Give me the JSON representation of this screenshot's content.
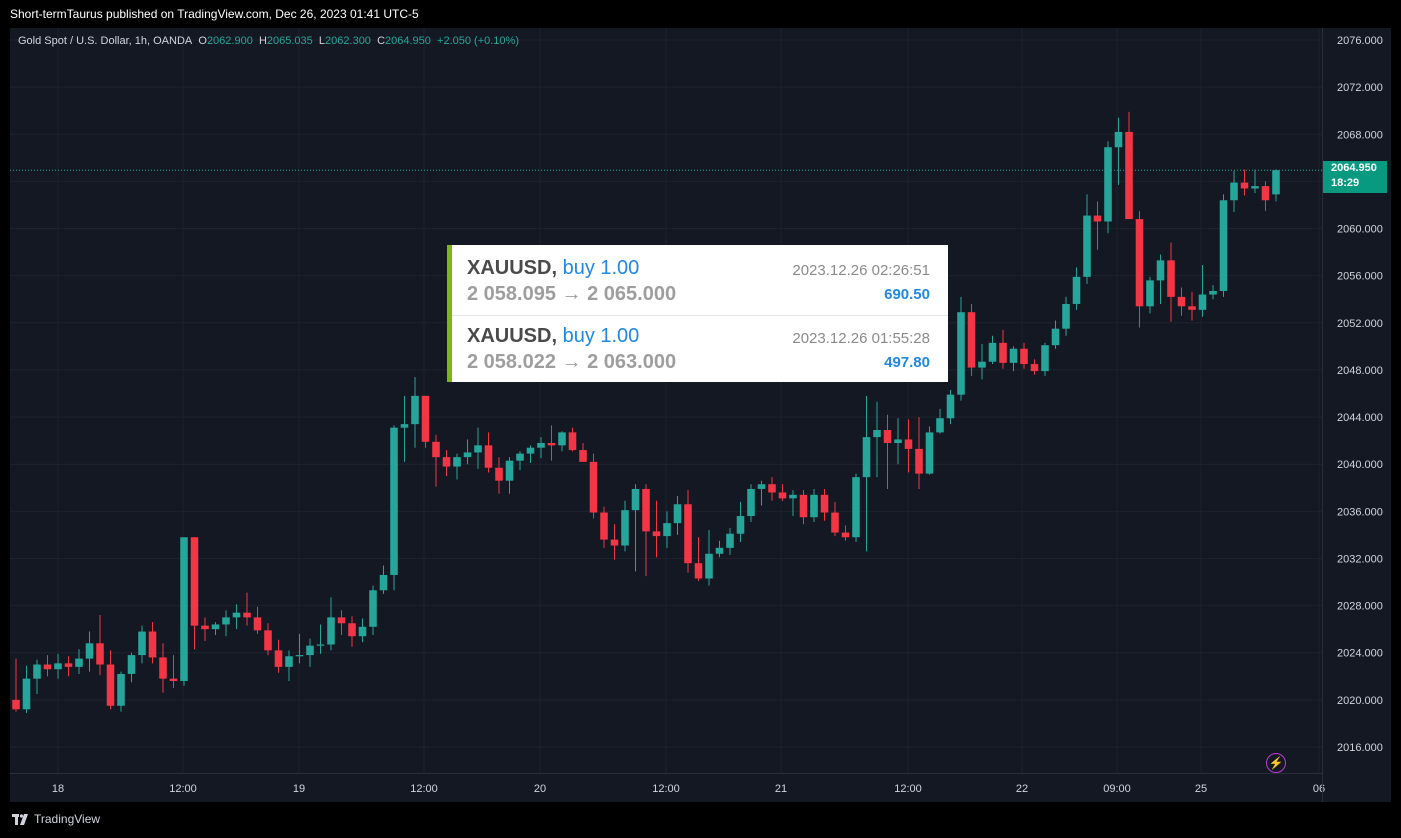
{
  "header": {
    "publisher_line": "Short-termTaurus published on TradingView.com, Dec 26, 2023 01:41 UTC-5"
  },
  "footer": {
    "brand": "TradingView"
  },
  "legend": {
    "symbol": "Gold Spot / U.S. Dollar, 1h, OANDA",
    "o_label": "O",
    "o_value": "2062.900",
    "h_label": "H",
    "h_value": "2065.035",
    "l_label": "L",
    "l_value": "2062.300",
    "c_label": "C",
    "c_value": "2064.950",
    "change": "+2.050 (+0.10%)"
  },
  "price_tag": {
    "price": "2064.950",
    "countdown": "18:29"
  },
  "trades": [
    {
      "symbol": "XAUUSD,",
      "side": "buy 1.00",
      "prices": "2 058.095 → 2 065.000",
      "time": "2023.12.26 02:26:51",
      "profit": "690.50"
    },
    {
      "symbol": "XAUUSD,",
      "side": "buy 1.00",
      "prices": "2 058.022 → 2 063.000",
      "time": "2023.12.26 01:55:28",
      "profit": "497.80"
    }
  ],
  "colors": {
    "up": "#26a69a",
    "down": "#f23645",
    "background": "#141823",
    "grid": "#1e222d",
    "accent_bar": "#7cb518",
    "profit": "#1e88e5"
  },
  "chart_data": {
    "type": "candlestick",
    "ylim": [
      2013.0,
      2078.0
    ],
    "y_ticks": [
      "2076.000",
      "2072.000",
      "2068.000",
      "2064.000",
      "2060.000",
      "2056.000",
      "2052.000",
      "2048.000",
      "2044.000",
      "2040.000",
      "2036.000",
      "2032.000",
      "2028.000",
      "2024.000",
      "2020.000",
      "2016.000"
    ],
    "x_ticks": [
      "18",
      "12:00",
      "19",
      "12:00",
      "20",
      "12:00",
      "21",
      "12:00",
      "22",
      "09:00",
      "25",
      "06"
    ],
    "current_price": 2064.95,
    "candles": [
      [
        2020.0,
        2023.5,
        2019.0,
        2019.2
      ],
      [
        2019.2,
        2022.9,
        2018.9,
        2021.8
      ],
      [
        2021.8,
        2023.4,
        2020.5,
        2023.0
      ],
      [
        2023.0,
        2023.8,
        2022.0,
        2022.6
      ],
      [
        2022.6,
        2023.9,
        2021.8,
        2023.1
      ],
      [
        2023.1,
        2023.7,
        2022.0,
        2022.8
      ],
      [
        2022.8,
        2024.3,
        2022.2,
        2023.5
      ],
      [
        2023.5,
        2025.8,
        2022.4,
        2024.8
      ],
      [
        2024.8,
        2027.2,
        2022.1,
        2023.0
      ],
      [
        2023.0,
        2024.2,
        2019.2,
        2019.5
      ],
      [
        2019.5,
        2022.4,
        2019.0,
        2022.2
      ],
      [
        2022.2,
        2024.0,
        2021.5,
        2023.8
      ],
      [
        2023.8,
        2026.3,
        2023.1,
        2025.8
      ],
      [
        2025.8,
        2026.6,
        2023.1,
        2023.6
      ],
      [
        2023.6,
        2024.8,
        2020.6,
        2021.8
      ],
      [
        2021.8,
        2023.8,
        2021.0,
        2021.6
      ],
      [
        2021.6,
        2033.8,
        2021.2,
        2033.8
      ],
      [
        2033.8,
        2033.8,
        2024.3,
        2026.3
      ],
      [
        2026.3,
        2027.0,
        2025.0,
        2026.0
      ],
      [
        2026.0,
        2026.6,
        2025.5,
        2026.4
      ],
      [
        2026.4,
        2027.6,
        2025.4,
        2027.0
      ],
      [
        2027.0,
        2028.1,
        2026.0,
        2027.4
      ],
      [
        2027.4,
        2029.1,
        2026.3,
        2027.0
      ],
      [
        2027.0,
        2027.9,
        2025.6,
        2025.9
      ],
      [
        2025.9,
        2026.5,
        2023.8,
        2024.2
      ],
      [
        2024.2,
        2025.1,
        2022.3,
        2022.8
      ],
      [
        2022.8,
        2024.2,
        2021.6,
        2023.7
      ],
      [
        2023.7,
        2025.6,
        2023.1,
        2023.8
      ],
      [
        2023.8,
        2025.2,
        2022.8,
        2024.6
      ],
      [
        2024.6,
        2026.4,
        2023.9,
        2024.7
      ],
      [
        2024.7,
        2028.7,
        2024.2,
        2027.0
      ],
      [
        2027.0,
        2027.6,
        2025.5,
        2026.5
      ],
      [
        2026.5,
        2027.1,
        2024.5,
        2025.4
      ],
      [
        2025.4,
        2026.9,
        2024.9,
        2026.2
      ],
      [
        2026.2,
        2029.7,
        2025.5,
        2029.3
      ],
      [
        2029.3,
        2031.4,
        2029.0,
        2030.6
      ],
      [
        2030.6,
        2043.3,
        2029.3,
        2043.1
      ],
      [
        2043.1,
        2045.8,
        2040.2,
        2043.4
      ],
      [
        2043.4,
        2047.4,
        2041.4,
        2045.8
      ],
      [
        2045.8,
        2045.8,
        2041.4,
        2041.9
      ],
      [
        2041.9,
        2042.5,
        2038.1,
        2040.6
      ],
      [
        2040.6,
        2041.2,
        2039.0,
        2039.8
      ],
      [
        2039.8,
        2040.9,
        2038.7,
        2040.6
      ],
      [
        2040.6,
        2042.1,
        2040.0,
        2041.0
      ],
      [
        2041.0,
        2043.1,
        2039.6,
        2041.6
      ],
      [
        2041.6,
        2042.7,
        2039.3,
        2039.7
      ],
      [
        2039.7,
        2040.6,
        2037.5,
        2038.6
      ],
      [
        2038.6,
        2040.6,
        2037.5,
        2040.3
      ],
      [
        2040.3,
        2041.1,
        2039.5,
        2040.9
      ],
      [
        2040.9,
        2041.6,
        2040.1,
        2041.4
      ],
      [
        2041.4,
        2042.3,
        2040.5,
        2041.8
      ],
      [
        2041.8,
        2043.3,
        2040.3,
        2041.6
      ],
      [
        2041.6,
        2042.8,
        2041.1,
        2042.7
      ],
      [
        2042.7,
        2043.1,
        2041.1,
        2041.2
      ],
      [
        2041.2,
        2041.8,
        2040.2,
        2040.2
      ],
      [
        2040.2,
        2040.9,
        2035.4,
        2035.9
      ],
      [
        2035.9,
        2036.4,
        2032.9,
        2033.6
      ],
      [
        2033.6,
        2034.9,
        2031.9,
        2033.1
      ],
      [
        2033.1,
        2036.9,
        2032.6,
        2036.1
      ],
      [
        2036.1,
        2038.3,
        2030.9,
        2037.9
      ],
      [
        2037.9,
        2038.3,
        2030.5,
        2034.3
      ],
      [
        2034.3,
        2036.9,
        2032.1,
        2033.9
      ],
      [
        2033.9,
        2036.0,
        2032.9,
        2035.0
      ],
      [
        2035.0,
        2037.3,
        2034.0,
        2036.6
      ],
      [
        2036.6,
        2037.8,
        2030.8,
        2031.6
      ],
      [
        2031.6,
        2033.8,
        2030.1,
        2030.3
      ],
      [
        2030.3,
        2034.4,
        2029.7,
        2032.4
      ],
      [
        2032.4,
        2033.5,
        2032.1,
        2032.9
      ],
      [
        2032.9,
        2034.6,
        2032.3,
        2034.1
      ],
      [
        2034.1,
        2036.8,
        2033.4,
        2035.6
      ],
      [
        2035.6,
        2038.3,
        2035.1,
        2037.9
      ],
      [
        2037.9,
        2038.6,
        2036.5,
        2038.3
      ],
      [
        2038.3,
        2038.9,
        2036.9,
        2037.6
      ],
      [
        2037.6,
        2038.3,
        2036.9,
        2037.1
      ],
      [
        2037.1,
        2037.8,
        2035.6,
        2037.4
      ],
      [
        2037.4,
        2037.8,
        2034.9,
        2035.5
      ],
      [
        2035.5,
        2037.9,
        2035.1,
        2037.4
      ],
      [
        2037.4,
        2037.9,
        2035.2,
        2035.9
      ],
      [
        2035.9,
        2036.8,
        2033.9,
        2034.2
      ],
      [
        2034.2,
        2034.8,
        2033.5,
        2033.8
      ],
      [
        2033.8,
        2039.2,
        2033.4,
        2038.9
      ],
      [
        2038.9,
        2045.8,
        2032.6,
        2042.3
      ],
      [
        2042.3,
        2045.3,
        2038.9,
        2042.9
      ],
      [
        2042.9,
        2044.2,
        2037.9,
        2041.8
      ],
      [
        2041.8,
        2043.9,
        2040.0,
        2042.1
      ],
      [
        2042.1,
        2043.8,
        2039.3,
        2041.3
      ],
      [
        2041.3,
        2044.0,
        2037.9,
        2039.2
      ],
      [
        2039.2,
        2043.2,
        2039.1,
        2042.7
      ],
      [
        2042.7,
        2044.7,
        2042.6,
        2043.9
      ],
      [
        2043.9,
        2046.3,
        2043.4,
        2045.9
      ],
      [
        2045.9,
        2054.2,
        2045.4,
        2052.9
      ],
      [
        2052.9,
        2053.6,
        2047.5,
        2048.2
      ],
      [
        2048.2,
        2050.2,
        2047.2,
        2048.7
      ],
      [
        2048.7,
        2050.9,
        2048.5,
        2050.3
      ],
      [
        2050.3,
        2051.4,
        2048.1,
        2048.6
      ],
      [
        2048.6,
        2050.0,
        2047.9,
        2049.8
      ],
      [
        2049.8,
        2050.3,
        2048.1,
        2048.5
      ],
      [
        2048.5,
        2048.9,
        2047.6,
        2047.9
      ],
      [
        2047.9,
        2050.3,
        2047.5,
        2050.1
      ],
      [
        2050.1,
        2052.2,
        2049.8,
        2051.5
      ],
      [
        2051.5,
        2054.2,
        2050.9,
        2053.6
      ],
      [
        2053.6,
        2056.7,
        2053.1,
        2055.9
      ],
      [
        2055.9,
        2062.9,
        2055.3,
        2061.1
      ],
      [
        2061.1,
        2062.3,
        2058.2,
        2060.6
      ],
      [
        2060.6,
        2067.4,
        2059.6,
        2066.9
      ],
      [
        2066.9,
        2069.4,
        2063.7,
        2068.2
      ],
      [
        2068.2,
        2069.9,
        2060.9,
        2060.8
      ],
      [
        2060.8,
        2061.5,
        2051.6,
        2053.4
      ],
      [
        2053.4,
        2055.9,
        2052.8,
        2055.6
      ],
      [
        2055.6,
        2057.8,
        2053.6,
        2057.3
      ],
      [
        2057.3,
        2058.8,
        2052.1,
        2054.2
      ],
      [
        2054.2,
        2055.0,
        2052.6,
        2053.4
      ],
      [
        2053.4,
        2054.6,
        2052.2,
        2053.1
      ],
      [
        2053.1,
        2056.9,
        2052.5,
        2054.4
      ],
      [
        2054.4,
        2055.2,
        2054.0,
        2054.7
      ],
      [
        2054.7,
        2062.9,
        2054.2,
        2062.4
      ],
      [
        2062.4,
        2064.9,
        2061.4,
        2063.9
      ],
      [
        2063.9,
        2065.0,
        2062.8,
        2063.4
      ],
      [
        2063.4,
        2065.0,
        2063.0,
        2063.6
      ],
      [
        2063.6,
        2064.0,
        2061.5,
        2062.4
      ],
      [
        2062.9,
        2065.035,
        2062.3,
        2064.95
      ]
    ]
  }
}
